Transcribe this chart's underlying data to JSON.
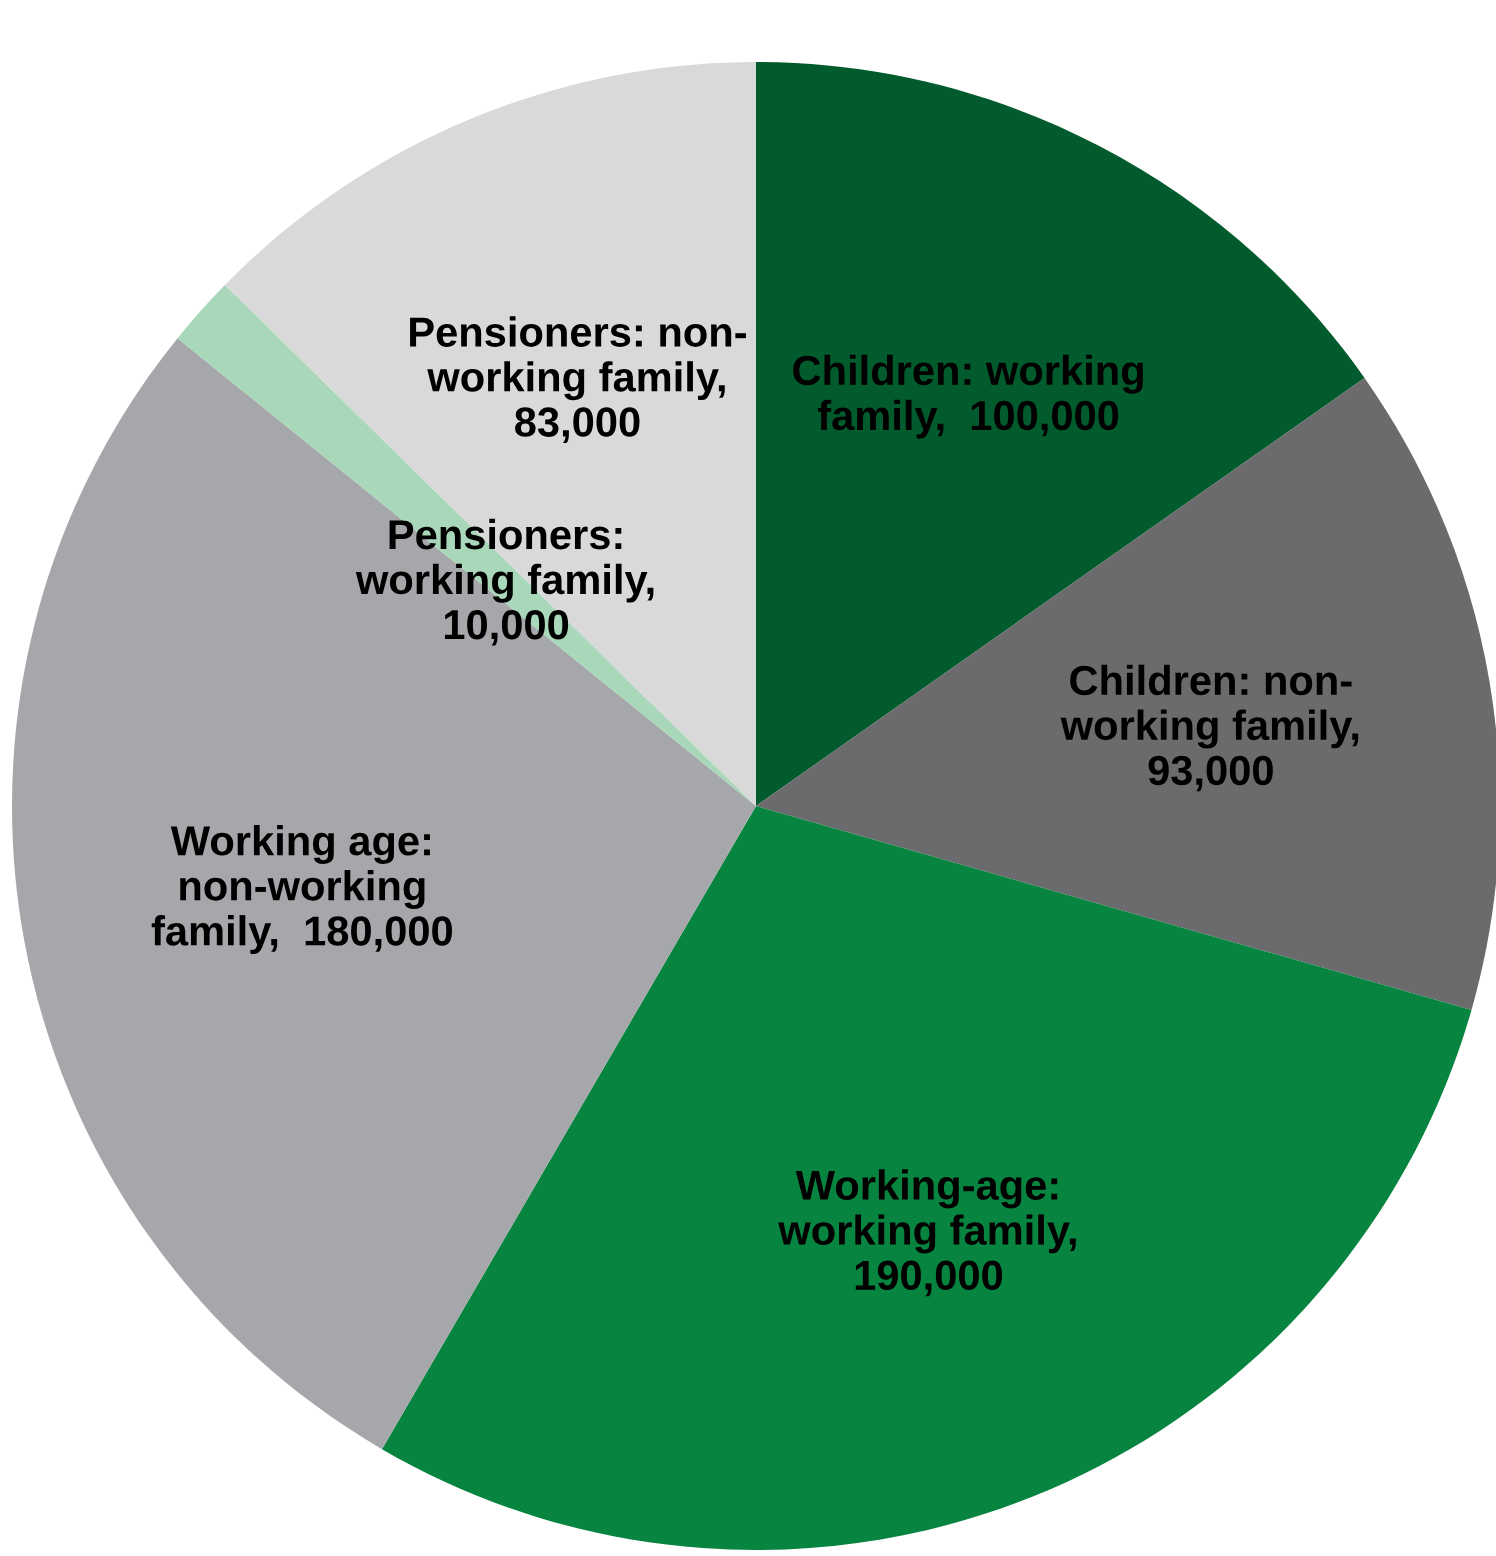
{
  "chart_data": {
    "type": "pie",
    "categories": [
      "Children: working\nfamily,  100,000",
      "Children: non-\nworking family,\n93,000",
      "Working-age:\nworking family,\n190,000",
      "Working age:\nnon-working\nfamily,  180,000",
      "Pensioners:\nworking family,\n10,000",
      "Pensioners: non-\nworking family,\n83,000"
    ],
    "values": [
      100000,
      93000,
      190000,
      180000,
      10000,
      83000
    ],
    "colors": [
      "#025b2c",
      "#6b6b6d",
      "#07843f",
      "#a6a7aa",
      "#a8d8b9",
      "#d9d9da"
    ]
  }
}
